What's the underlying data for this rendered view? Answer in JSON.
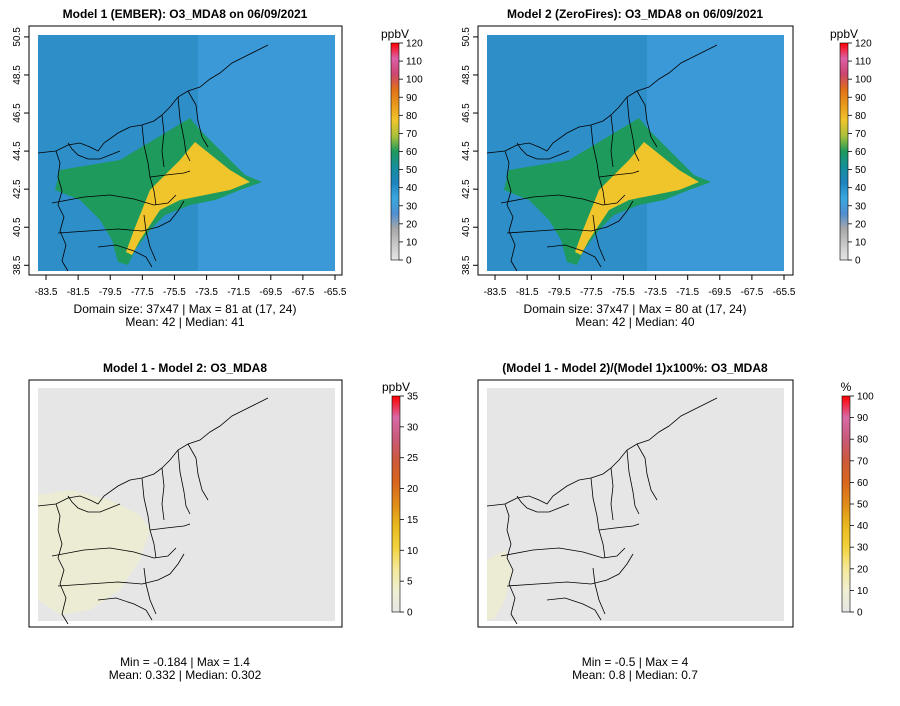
{
  "colors": {
    "conc_scale": [
      "#e6e6e6",
      "#c8c8c8",
      "#a8a8a8",
      "#4f8fd0",
      "#3aa8de",
      "#1f84be",
      "#158f9c",
      "#1e9a5c",
      "#a9c03a",
      "#f0c52c",
      "#e89a1c",
      "#e0701a",
      "#cc4570",
      "#dd60a8",
      "#ff0000"
    ],
    "diff_scale": [
      "#e6e6e6",
      "#f0efd2",
      "#f5e89a",
      "#f2d23c",
      "#e8b81e",
      "#e08c1a",
      "#d8661e",
      "#cc5a3a",
      "#c85a78",
      "#d86aa8",
      "#ff0000"
    ],
    "map_background_grey": "#e6e6e6"
  },
  "chart_data": [
    {
      "type": "heatmap",
      "title": "Model 1 (EMBER): O3_MDA8 on 06/09/2021",
      "x_ticks": [
        "-83.5",
        "-81.5",
        "-79.5",
        "-77.5",
        "-75.5",
        "-73.5",
        "-71.5",
        "-69.5",
        "-67.5",
        "-65.5"
      ],
      "y_ticks": [
        "38.5",
        "40.5",
        "42.5",
        "44.5",
        "46.5",
        "48.5",
        "50.5"
      ],
      "xlim": [
        -84,
        -65.5
      ],
      "ylim": [
        38.2,
        50.6
      ],
      "colorbar": {
        "unit": "ppbV",
        "ticks": [
          "0",
          "10",
          "20",
          "30",
          "40",
          "50",
          "60",
          "70",
          "80",
          "90",
          "100",
          "110",
          "120"
        ],
        "range": [
          0,
          120
        ]
      },
      "caption_line1": "Domain size: 37x47 | Max = 81 at (17, 24)",
      "caption_line2": "Mean: 42 |  Median: 41",
      "stats": {
        "grid": "37x47",
        "max": 81,
        "max_cell": [
          17,
          24
        ],
        "mean": 42,
        "median": 41
      }
    },
    {
      "type": "heatmap",
      "title": "Model 2 (ZeroFires): O3_MDA8 on 06/09/2021",
      "x_ticks": [
        "-83.5",
        "-81.5",
        "-79.5",
        "-77.5",
        "-75.5",
        "-73.5",
        "-71.5",
        "-69.5",
        "-67.5",
        "-65.5"
      ],
      "y_ticks": [
        "38.5",
        "40.5",
        "42.5",
        "44.5",
        "46.5",
        "48.5",
        "50.5"
      ],
      "xlim": [
        -84,
        -65.5
      ],
      "ylim": [
        38.2,
        50.6
      ],
      "colorbar": {
        "unit": "ppbV",
        "ticks": [
          "0",
          "10",
          "20",
          "30",
          "40",
          "50",
          "60",
          "70",
          "80",
          "90",
          "100",
          "110",
          "120"
        ],
        "range": [
          0,
          120
        ]
      },
      "caption_line1": "Domain size: 37x47 | Max = 80 at (17, 24)",
      "caption_line2": "Mean: 42 |  Median: 40",
      "stats": {
        "grid": "37x47",
        "max": 80,
        "max_cell": [
          17,
          24
        ],
        "mean": 42,
        "median": 40
      }
    },
    {
      "type": "heatmap",
      "title": "Model 1 - Model 2: O3_MDA8",
      "colorbar": {
        "unit": "ppbV",
        "ticks": [
          "0",
          "5",
          "10",
          "15",
          "20",
          "25",
          "30",
          "35"
        ],
        "range": [
          0,
          35
        ]
      },
      "caption_line1": "Min = -0.184 | Max = 1.4",
      "caption_line2": "Mean: 0.332 |  Median: 0.302",
      "stats": {
        "min": -0.184,
        "max": 1.4,
        "mean": 0.332,
        "median": 0.302
      }
    },
    {
      "type": "heatmap",
      "title": "(Model 1 - Model 2)/(Model 1)x100%: O3_MDA8",
      "colorbar": {
        "unit": "%",
        "ticks": [
          "0",
          "10",
          "20",
          "30",
          "40",
          "50",
          "60",
          "70",
          "80",
          "90",
          "100"
        ],
        "range": [
          0,
          100
        ]
      },
      "caption_line1": "Min = -0.5 | Max = 4",
      "caption_line2": "Mean: 0.8 |  Median: 0.7",
      "stats": {
        "min": -0.5,
        "max": 4,
        "mean": 0.8,
        "median": 0.7
      }
    }
  ]
}
